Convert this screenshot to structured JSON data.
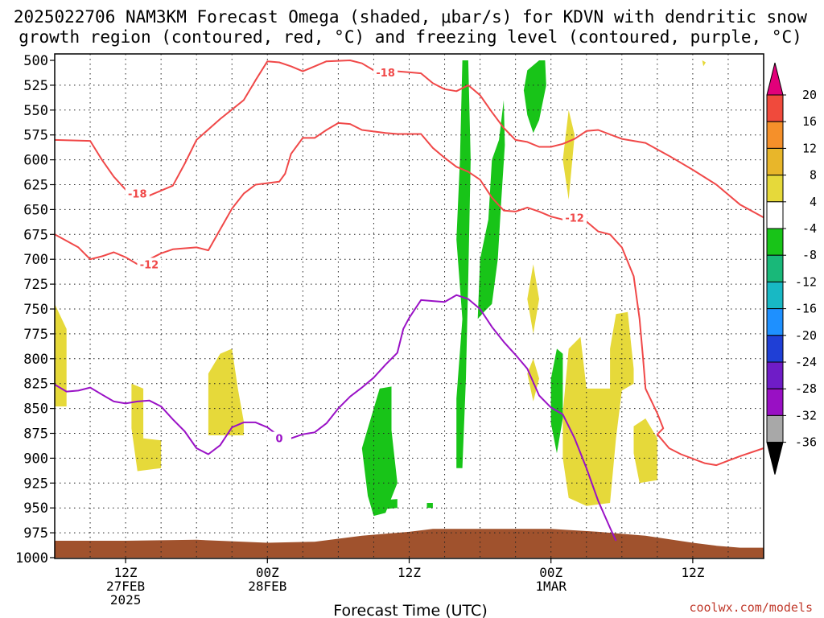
{
  "chart_data": {
    "type": "area",
    "title_line1": "2025022706 NAM3KM Forecast Omega (shaded, μbar/s) for KDVN with dendritic snow",
    "title_line2": "growth region (contoured, red, °C) and freezing level (contoured, purple, °C)",
    "xlabel": "Forecast Time (UTC)",
    "credit": "coolwx.com/models",
    "x_unit": "forecast hour from 2025-02-27 06Z",
    "xlim": [
      0,
      60
    ],
    "y_unit": "hPa",
    "ylim": [
      1000,
      500
    ],
    "y_ticks": [
      500,
      525,
      550,
      575,
      600,
      625,
      650,
      675,
      700,
      725,
      750,
      775,
      800,
      825,
      850,
      875,
      900,
      925,
      950,
      975,
      1000
    ],
    "x_ticks": [
      {
        "hour": 6,
        "lines": [
          "12Z",
          "27FEB",
          "2025"
        ]
      },
      {
        "hour": 18,
        "lines": [
          "00Z",
          "28FEB"
        ]
      },
      {
        "hour": 30,
        "lines": [
          "12Z"
        ]
      },
      {
        "hour": 42,
        "lines": [
          "00Z",
          "1MAR"
        ]
      },
      {
        "hour": 54,
        "lines": [
          "12Z"
        ]
      }
    ],
    "colorbar": {
      "labels": [
        "20",
        "16",
        "12",
        "8",
        "4",
        "-4",
        "-8",
        "-12",
        "-16",
        "-20",
        "-24",
        "-28",
        "-32",
        "-36"
      ],
      "colors": [
        "#e2007a",
        "#f04a3c",
        "#f5902a",
        "#e8b62a",
        "#e6d93a",
        "#ffffff",
        "#18c418",
        "#19b879",
        "#18b8c4",
        "#1e90ff",
        "#1f3fd6",
        "#6f1cc7",
        "#9910c4",
        "#a8a8a8",
        "#000000"
      ]
    },
    "contours": [
      {
        "label": "-18",
        "color": "#f04848",
        "points": [
          [
            0,
            580
          ],
          [
            3,
            581
          ],
          [
            4,
            600
          ],
          [
            5,
            617
          ],
          [
            6,
            630
          ],
          [
            7,
            639
          ],
          [
            8,
            636
          ],
          [
            10,
            626
          ],
          [
            11,
            604
          ],
          [
            12,
            580
          ],
          [
            14,
            559
          ],
          [
            16,
            540
          ],
          [
            17,
            520
          ],
          [
            18,
            501
          ],
          [
            19,
            502
          ],
          [
            20,
            506
          ],
          [
            21,
            511
          ],
          [
            22,
            506
          ],
          [
            23,
            501
          ],
          [
            25,
            500
          ],
          [
            26,
            503
          ],
          [
            27,
            510
          ],
          [
            29,
            511
          ],
          [
            31,
            513
          ],
          [
            32,
            523
          ],
          [
            33,
            529
          ],
          [
            34,
            531
          ],
          [
            35,
            525
          ],
          [
            36,
            535
          ],
          [
            37,
            552
          ],
          [
            38,
            568
          ],
          [
            39,
            580
          ],
          [
            40,
            582
          ],
          [
            41,
            587
          ],
          [
            42,
            587
          ],
          [
            43,
            584
          ],
          [
            44,
            579
          ],
          [
            45,
            571
          ],
          [
            46,
            570
          ],
          [
            48,
            579
          ],
          [
            50,
            583
          ],
          [
            52,
            596
          ],
          [
            54,
            610
          ],
          [
            56,
            625
          ],
          [
            58,
            645
          ],
          [
            60,
            658
          ]
        ],
        "label_at": [
          [
            7,
            634
          ],
          [
            28,
            512
          ]
        ]
      },
      {
        "label": "-12",
        "color": "#f04848",
        "points": [
          [
            0,
            675
          ],
          [
            2,
            688
          ],
          [
            3,
            700
          ],
          [
            4,
            697
          ],
          [
            5,
            693
          ],
          [
            6,
            698
          ],
          [
            7,
            705
          ],
          [
            8,
            700
          ],
          [
            9,
            694
          ],
          [
            10,
            690
          ],
          [
            12,
            688
          ],
          [
            13,
            691
          ],
          [
            14,
            670
          ],
          [
            15,
            649
          ],
          [
            16,
            634
          ],
          [
            17,
            625
          ],
          [
            19,
            622
          ],
          [
            19.5,
            614
          ],
          [
            20,
            594
          ],
          [
            21,
            578
          ],
          [
            22,
            578
          ],
          [
            23,
            570
          ],
          [
            24,
            563
          ],
          [
            25,
            564
          ],
          [
            26,
            570
          ],
          [
            28,
            573
          ],
          [
            29,
            574
          ],
          [
            31,
            574
          ],
          [
            32,
            588
          ],
          [
            33,
            598
          ],
          [
            34,
            607
          ],
          [
            35,
            612
          ],
          [
            36,
            620
          ],
          [
            37,
            638
          ],
          [
            38,
            651
          ],
          [
            39,
            652
          ],
          [
            40,
            648
          ],
          [
            41,
            652
          ],
          [
            42,
            657
          ],
          [
            43,
            660
          ],
          [
            44,
            658
          ],
          [
            45,
            662
          ],
          [
            46,
            672
          ],
          [
            47,
            675
          ],
          [
            48,
            688
          ],
          [
            49,
            717
          ],
          [
            49.5,
            760
          ],
          [
            49.8,
            800
          ],
          [
            50,
            830
          ],
          [
            51,
            855
          ],
          [
            51.5,
            870
          ],
          [
            51,
            876
          ],
          [
            51.5,
            883
          ],
          [
            52,
            890
          ],
          [
            53,
            896
          ],
          [
            55,
            905
          ],
          [
            56,
            907
          ],
          [
            58,
            898
          ],
          [
            60,
            890
          ]
        ],
        "label_at": [
          [
            8,
            705
          ],
          [
            44,
            658
          ]
        ]
      }
    ],
    "freezing_level": {
      "label": "0",
      "color": "#9a12c6",
      "points": [
        [
          0,
          826
        ],
        [
          1,
          833
        ],
        [
          2,
          832
        ],
        [
          3,
          829
        ],
        [
          4,
          836
        ],
        [
          5,
          843
        ],
        [
          6,
          845
        ],
        [
          7,
          843
        ],
        [
          8,
          842
        ],
        [
          9,
          848
        ],
        [
          10,
          861
        ],
        [
          11,
          873
        ],
        [
          12,
          890
        ],
        [
          13,
          896
        ],
        [
          14,
          887
        ],
        [
          14.5,
          878
        ],
        [
          15,
          869
        ],
        [
          16,
          864
        ],
        [
          17,
          864
        ],
        [
          18,
          869
        ],
        [
          19,
          878
        ],
        [
          20,
          880
        ],
        [
          21,
          876
        ],
        [
          22,
          874
        ],
        [
          23,
          865
        ],
        [
          24,
          850
        ],
        [
          25,
          838
        ],
        [
          26,
          829
        ],
        [
          27,
          819
        ],
        [
          28,
          806
        ],
        [
          29,
          794
        ],
        [
          29.5,
          770
        ],
        [
          30,
          759
        ],
        [
          30.5,
          750
        ],
        [
          31,
          741
        ],
        [
          32,
          742
        ],
        [
          33,
          743
        ],
        [
          34,
          736
        ],
        [
          35,
          740
        ],
        [
          36,
          750
        ],
        [
          37,
          768
        ],
        [
          38,
          783
        ],
        [
          39,
          796
        ],
        [
          40,
          810
        ],
        [
          41,
          837
        ],
        [
          42,
          849
        ],
        [
          43,
          856
        ],
        [
          44,
          880
        ],
        [
          45,
          910
        ],
        [
          46,
          943
        ],
        [
          47,
          970
        ],
        [
          47.5,
          983
        ]
      ],
      "label_at": [
        [
          19,
          880
        ]
      ]
    },
    "omega_areas": [
      {
        "value": "4",
        "color": "#e6d93a",
        "points": [
          [
            0,
            745
          ],
          [
            1,
            770
          ],
          [
            1,
            848
          ],
          [
            0,
            848
          ]
        ]
      },
      {
        "value": "4",
        "color": "#e6d93a",
        "points": [
          [
            6.5,
            825
          ],
          [
            7.5,
            830
          ],
          [
            7.5,
            880
          ],
          [
            9,
            882
          ],
          [
            9,
            910
          ],
          [
            7,
            913
          ],
          [
            6.5,
            870
          ]
        ]
      },
      {
        "value": "4",
        "color": "#e6d93a",
        "points": [
          [
            13,
            815
          ],
          [
            14,
            795
          ],
          [
            15,
            790
          ],
          [
            15.5,
            830
          ],
          [
            16,
            863
          ],
          [
            16,
            877
          ],
          [
            13,
            877
          ]
        ]
      },
      {
        "value": "4",
        "color": "#e6d93a",
        "points": [
          [
            40.5,
            705
          ],
          [
            41,
            740
          ],
          [
            40.5,
            775
          ],
          [
            40,
            740
          ]
        ]
      },
      {
        "value": "4",
        "color": "#e6d93a",
        "points": [
          [
            40.5,
            800
          ],
          [
            41,
            820
          ],
          [
            40.5,
            843
          ],
          [
            40,
            815
          ]
        ]
      },
      {
        "value": "4",
        "color": "#e6d93a",
        "points": [
          [
            43.5,
            550
          ],
          [
            44,
            575
          ],
          [
            43.5,
            640
          ],
          [
            43,
            600
          ]
        ]
      },
      {
        "value": "4",
        "color": "#e6d93a",
        "points": [
          [
            43,
            855
          ],
          [
            43.5,
            790
          ],
          [
            44.5,
            778
          ],
          [
            45,
            830
          ],
          [
            47,
            830
          ],
          [
            47,
            790
          ],
          [
            47.5,
            755
          ],
          [
            48.5,
            753
          ],
          [
            49,
            810
          ],
          [
            49,
            825
          ],
          [
            48,
            832
          ],
          [
            47.5,
            880
          ],
          [
            47,
            945
          ],
          [
            45,
            948
          ],
          [
            43.5,
            940
          ],
          [
            43,
            900
          ]
        ]
      },
      {
        "value": "4",
        "color": "#e6d93a",
        "points": [
          [
            49,
            868
          ],
          [
            50,
            860
          ],
          [
            51,
            880
          ],
          [
            51,
            922
          ],
          [
            49.5,
            925
          ],
          [
            49,
            895
          ]
        ]
      },
      {
        "value": "4",
        "color": "#e6d93a",
        "points": [
          [
            54.8,
            500
          ],
          [
            55.1,
            502
          ],
          [
            54.9,
            506
          ]
        ]
      },
      {
        "value": "-4",
        "color": "#18c418",
        "points": [
          [
            26,
            890
          ],
          [
            27.5,
            830
          ],
          [
            28.5,
            828
          ],
          [
            28.5,
            872
          ],
          [
            29,
            925
          ],
          [
            28,
            955
          ],
          [
            27,
            958
          ],
          [
            26.5,
            938
          ]
        ]
      },
      {
        "value": "-4",
        "color": "#18c418",
        "points": [
          [
            27,
            943
          ],
          [
            29,
            941
          ],
          [
            29,
            950
          ],
          [
            27,
            952
          ]
        ]
      },
      {
        "value": "-4",
        "color": "#18c418",
        "points": [
          [
            31.5,
            945
          ],
          [
            32,
            945
          ],
          [
            32,
            950
          ],
          [
            31.5,
            950
          ]
        ]
      },
      {
        "value": "-4",
        "color": "#18c418",
        "points": [
          [
            34,
            840
          ],
          [
            34.5,
            760
          ],
          [
            34,
            680
          ],
          [
            34.3,
            600
          ],
          [
            34.5,
            500
          ],
          [
            35,
            500
          ],
          [
            35.2,
            600
          ],
          [
            35,
            720
          ],
          [
            34.8,
            820
          ],
          [
            34.5,
            910
          ],
          [
            34,
            910
          ]
        ]
      },
      {
        "value": "-4",
        "color": "#18c418",
        "points": [
          [
            35.8,
            760
          ],
          [
            36,
            700
          ],
          [
            36.7,
            660
          ],
          [
            37,
            600
          ],
          [
            37.6,
            580
          ],
          [
            38,
            540
          ],
          [
            38.1,
            585
          ],
          [
            37.8,
            640
          ],
          [
            37.5,
            700
          ],
          [
            37,
            745
          ],
          [
            36.4,
            752
          ]
        ]
      },
      {
        "value": "-4",
        "color": "#18c418",
        "points": [
          [
            39.7,
            530
          ],
          [
            40,
            510
          ],
          [
            41,
            500
          ],
          [
            41.5,
            500
          ],
          [
            41.6,
            525
          ],
          [
            41,
            560
          ],
          [
            40.5,
            573
          ],
          [
            40,
            555
          ]
        ]
      },
      {
        "value": "-4",
        "color": "#18c418",
        "points": [
          [
            42,
            820
          ],
          [
            42.5,
            790
          ],
          [
            43,
            795
          ],
          [
            43,
            860
          ],
          [
            42.5,
            895
          ],
          [
            42,
            865
          ]
        ]
      }
    ],
    "ground_hpa": [
      [
        0,
        983
      ],
      [
        6,
        983
      ],
      [
        12,
        982
      ],
      [
        18,
        985
      ],
      [
        22,
        984
      ],
      [
        26,
        978
      ],
      [
        30,
        974
      ],
      [
        32,
        971
      ],
      [
        36,
        971
      ],
      [
        42,
        971
      ],
      [
        46,
        974
      ],
      [
        50,
        978
      ],
      [
        54,
        985
      ],
      [
        56,
        988
      ],
      [
        58,
        990
      ],
      [
        60,
        990
      ]
    ]
  }
}
